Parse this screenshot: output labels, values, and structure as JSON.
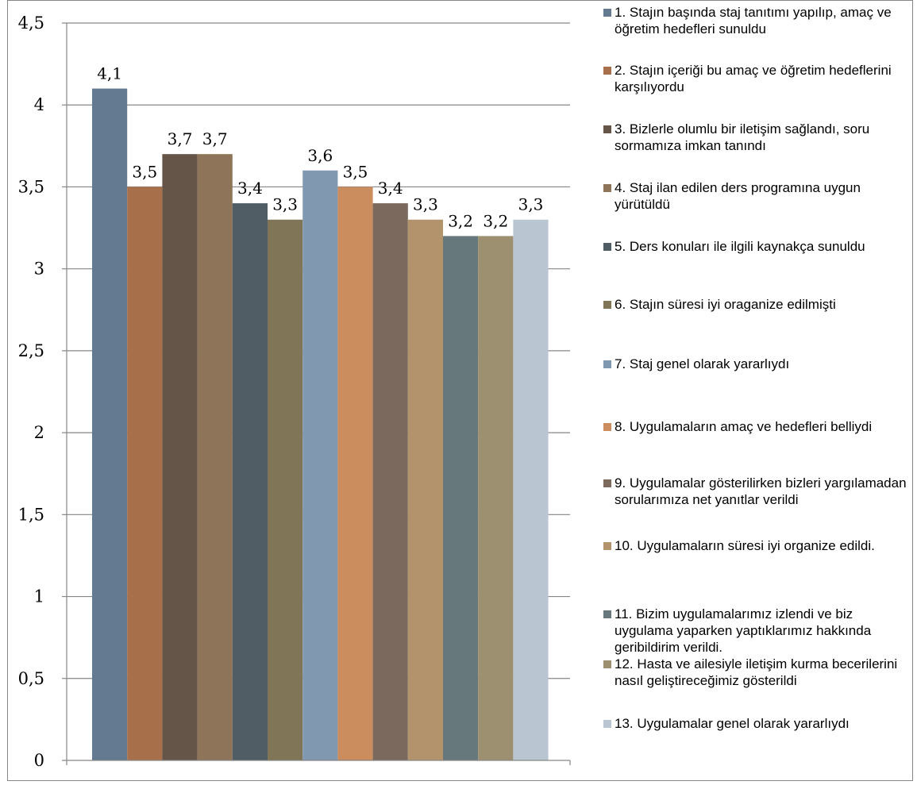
{
  "chart_data": {
    "type": "bar",
    "categories": [
      "1. Stajın başında staj tanıtımı yapılıp, amaç ve öğretim hedefleri sunuldu",
      "2. Stajın içeriği bu amaç ve öğretim hedeflerini karşılıyordu",
      "3. Bizlerle olumlu bir iletişim sağlandı, soru sormamıza imkan tanındı",
      "4. Staj ilan edilen ders programına uygun yürütüldü",
      "5. Ders konuları ile ilgili kaynakça sunuldu",
      "6. Stajın süresi iyi oraganize edilmişti",
      "7. Staj genel olarak yararlıydı",
      "8. Uygulamaların amaç ve hedefleri belliydi",
      "9. Uygulamalar gösterilirken bizleri yargılamadan sorularımıza net yanıtlar verildi",
      "10. Uygulamaların süresi iyi organize edildi.",
      "11. Bizim uygulamalarımız izlendi ve biz uygulama yaparken yaptıklarımız hakkında geribildirim verildi.",
      "12. Hasta ve ailesiyle iletişim kurma becerilerini nasıl geliştireceğimiz gösterildi",
      "13. Uygulamalar genel olarak yararlıydı"
    ],
    "values": [
      4.1,
      3.5,
      3.7,
      3.7,
      3.4,
      3.3,
      3.6,
      3.5,
      3.4,
      3.3,
      3.2,
      3.2,
      3.3
    ],
    "value_labels": [
      "4,1",
      "3,5",
      "3,7",
      "3,7",
      "3,4",
      "3,3",
      "3,6",
      "3,5",
      "3,4",
      "3,3",
      "3,2",
      "3,2",
      "3,3"
    ],
    "colors": [
      "#647a91",
      "#a8704a",
      "#655548",
      "#8e7459",
      "#505d65",
      "#807556",
      "#8198b1",
      "#cb8c5e",
      "#7a695c",
      "#b3936c",
      "#66787c",
      "#9c9070",
      "#b9c5d1"
    ],
    "ylim": [
      0,
      4.5
    ],
    "ytick_values": [
      0,
      0.5,
      1,
      1.5,
      2,
      2.5,
      3,
      3.5,
      4,
      4.5
    ],
    "ytick_labels": [
      "0",
      "0,5",
      "1",
      "1,5",
      "2",
      "2,5",
      "3",
      "3,5",
      "4",
      "4,5"
    ],
    "grid": true,
    "legend_position": "right",
    "title": "",
    "xlabel": "",
    "ylabel": ""
  }
}
